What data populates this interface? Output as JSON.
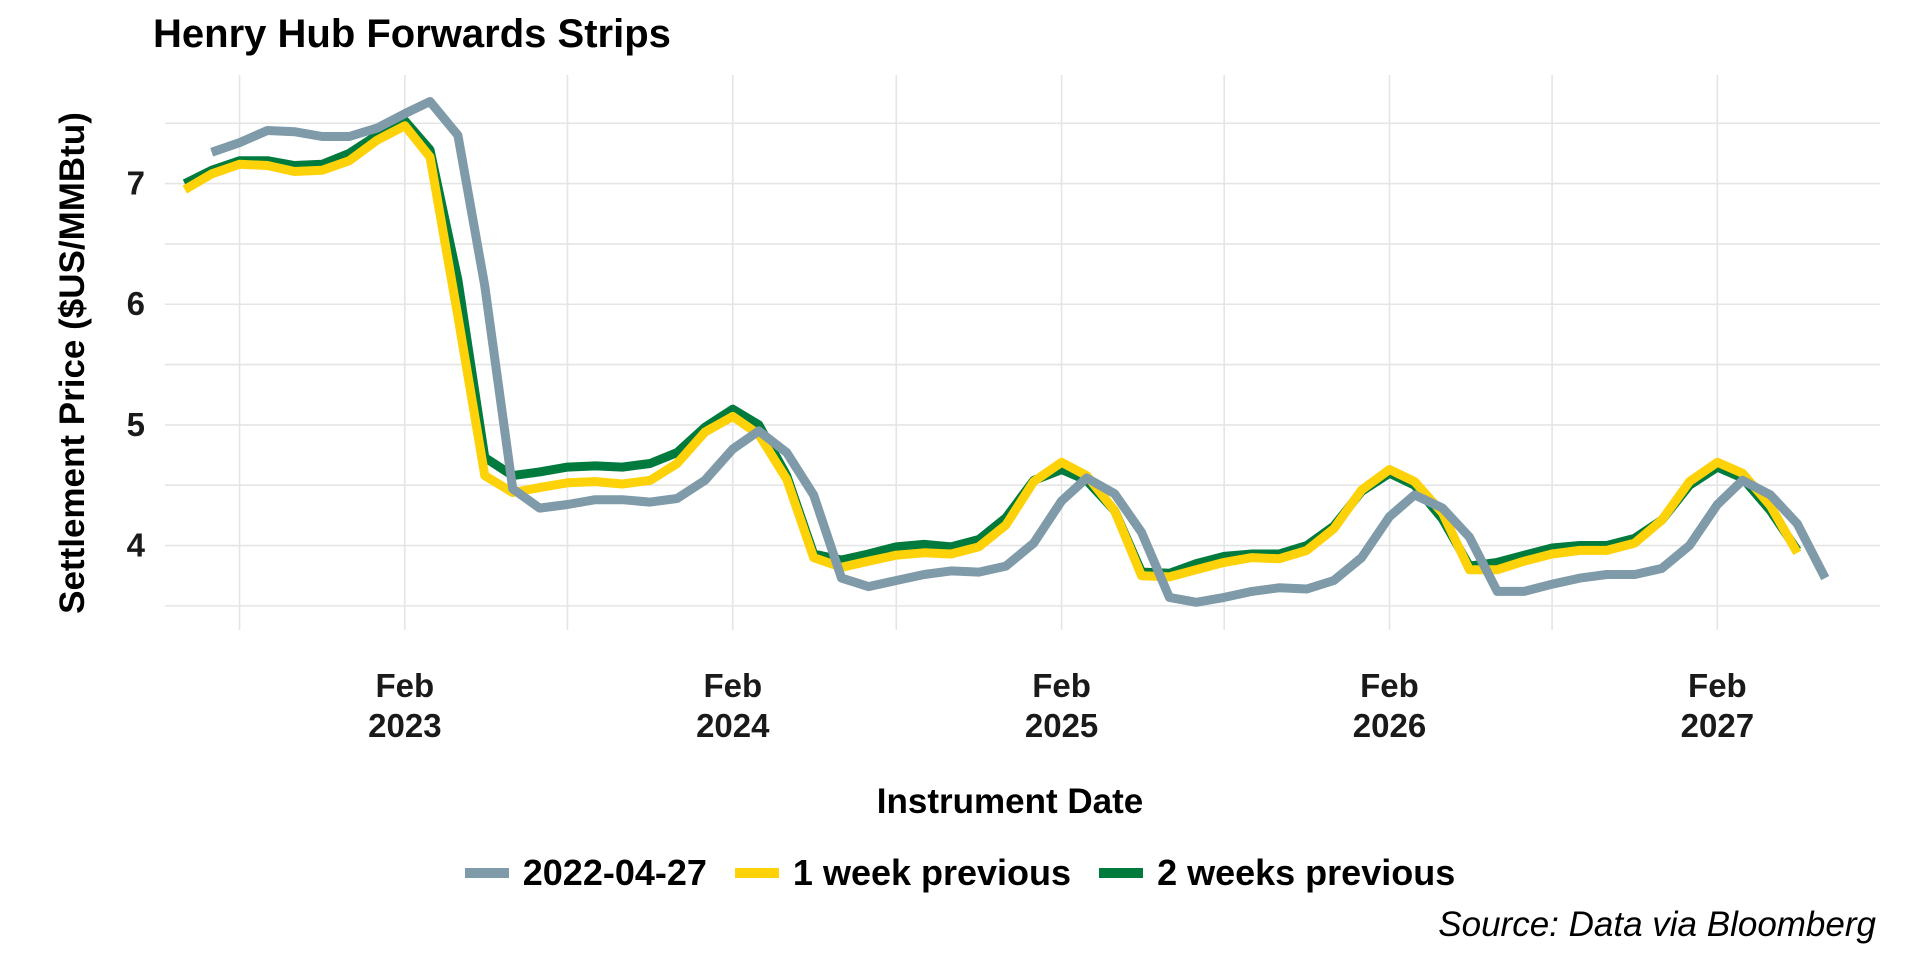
{
  "chart_data": {
    "type": "line",
    "title": "Henry Hub Forwards Strips",
    "xlabel": "Instrument Date",
    "ylabel": "Settlement Price ($US/MMBtu)",
    "caption": "Source: Data via Bloomberg",
    "x_range": [
      "2022-05-10",
      "2027-08-01"
    ],
    "ylim": [
      3.3,
      7.9
    ],
    "y_ticks": [
      4,
      5,
      6,
      7
    ],
    "y_tick_labels": [
      "4",
      "5",
      "6",
      "7"
    ],
    "x_ticks": [
      "2023-02-01",
      "2024-02-01",
      "2025-02-01",
      "2026-02-01",
      "2027-02-01"
    ],
    "x_tick_labels": [
      {
        "month": "Feb",
        "year": "2023"
      },
      {
        "month": "Feb",
        "year": "2024"
      },
      {
        "month": "Feb",
        "year": "2025"
      },
      {
        "month": "Feb",
        "year": "2026"
      },
      {
        "month": "Feb",
        "year": "2027"
      }
    ],
    "grid": true,
    "legend_position": "bottom",
    "series": [
      {
        "name": "2022-04-27",
        "color": "#7f9aa8",
        "start": "2022-07-01",
        "values": [
          7.26,
          7.34,
          7.44,
          7.43,
          7.39,
          7.39,
          7.46,
          7.58,
          7.68,
          7.4,
          6.15,
          4.47,
          4.31,
          4.34,
          4.38,
          4.38,
          4.36,
          4.39,
          4.54,
          4.8,
          4.95,
          4.77,
          4.42,
          3.73,
          3.66,
          3.71,
          3.76,
          3.79,
          3.78,
          3.83,
          4.02,
          4.37,
          4.56,
          4.43,
          4.11,
          3.57,
          3.53,
          3.57,
          3.62,
          3.65,
          3.64,
          3.71,
          3.9,
          4.24,
          4.42,
          4.31,
          4.07,
          3.62,
          3.62,
          3.68,
          3.73,
          3.76,
          3.76,
          3.81,
          4.0,
          4.34,
          4.54,
          4.42,
          4.18,
          3.73
        ]
      },
      {
        "name": "1 week previous",
        "color": "#fed208",
        "start": "2022-06-01",
        "values": [
          6.95,
          7.08,
          7.16,
          7.15,
          7.1,
          7.11,
          7.19,
          7.36,
          7.48,
          7.22,
          5.9,
          4.58,
          4.44,
          4.48,
          4.52,
          4.53,
          4.51,
          4.54,
          4.68,
          4.94,
          5.07,
          4.92,
          4.55,
          3.9,
          3.82,
          3.87,
          3.92,
          3.94,
          3.93,
          3.99,
          4.17,
          4.53,
          4.69,
          4.58,
          4.29,
          3.75,
          3.74,
          3.8,
          3.86,
          3.9,
          3.89,
          3.96,
          4.14,
          4.46,
          4.63,
          4.53,
          4.27,
          3.8,
          3.8,
          3.87,
          3.93,
          3.96,
          3.96,
          4.02,
          4.21,
          4.53,
          4.69,
          4.6,
          4.33,
          3.94
        ]
      },
      {
        "name": "2 weeks previous",
        "color": "#007b3d",
        "start": "2022-06-01",
        "values": [
          7.0,
          7.11,
          7.19,
          7.19,
          7.15,
          7.16,
          7.25,
          7.4,
          7.52,
          7.28,
          6.2,
          4.73,
          4.58,
          4.61,
          4.65,
          4.66,
          4.65,
          4.68,
          4.77,
          4.98,
          5.13,
          5.0,
          4.58,
          3.93,
          3.88,
          3.93,
          3.99,
          4.01,
          3.99,
          4.05,
          4.23,
          4.54,
          4.63,
          4.54,
          4.29,
          3.78,
          3.77,
          3.85,
          3.91,
          3.93,
          3.93,
          4.0,
          4.16,
          4.45,
          4.6,
          4.5,
          4.22,
          3.83,
          3.86,
          3.92,
          3.98,
          4.0,
          4.0,
          4.06,
          4.21,
          4.5,
          4.65,
          4.56,
          4.29,
          3.96
        ]
      }
    ]
  }
}
